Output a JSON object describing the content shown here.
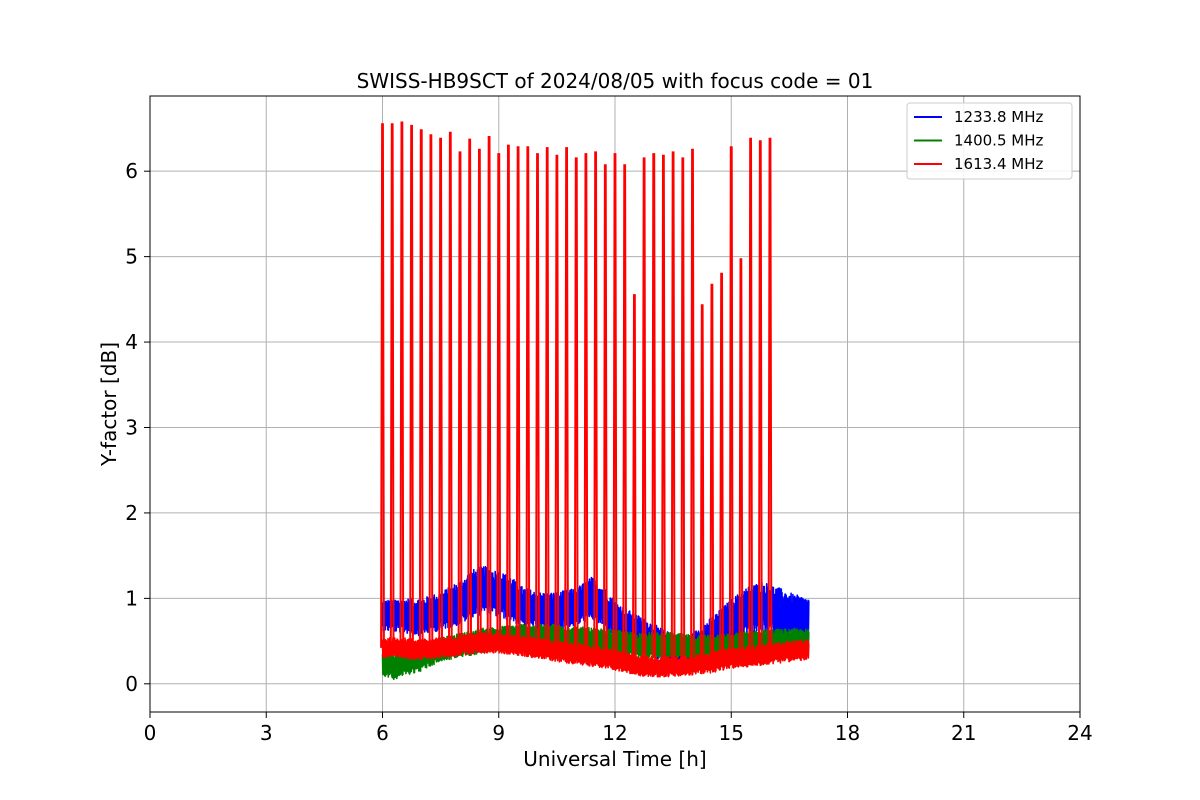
{
  "chart_data": {
    "type": "line",
    "title": "SWISS-HB9SCT of 2024/08/05 with focus code = 01",
    "xlabel": "Universal Time [h]",
    "ylabel": "Y-factor [dB]",
    "xlim": [
      0,
      24
    ],
    "ylim": [
      -0.33,
      6.88
    ],
    "xticks": [
      0,
      3,
      6,
      9,
      12,
      15,
      18,
      21,
      24
    ],
    "yticks": [
      0,
      1,
      2,
      3,
      4,
      5,
      6
    ],
    "grid": true,
    "legend_position": "top-right",
    "series": [
      {
        "name": "1233.8 MHz",
        "color": "#0000ff",
        "x": [
          6.0,
          6.5,
          7.0,
          7.5,
          8.0,
          8.3,
          8.6,
          9.0,
          9.3,
          9.6,
          10.0,
          10.5,
          11.0,
          11.4,
          11.7,
          12.0,
          12.4,
          12.8,
          13.2,
          13.6,
          13.9,
          14.2,
          14.6,
          15.0,
          15.4,
          15.8,
          16.2,
          16.6,
          17.0
        ],
        "values": [
          0.8,
          0.8,
          0.78,
          0.85,
          0.95,
          1.05,
          1.1,
          1.05,
          1.0,
          0.9,
          0.85,
          0.85,
          0.9,
          1.0,
          0.9,
          0.75,
          0.65,
          0.55,
          0.45,
          0.35,
          0.35,
          0.45,
          0.6,
          0.75,
          0.85,
          0.9,
          0.85,
          0.8,
          0.78
        ],
        "band": [
          0.18,
          0.2,
          0.22,
          0.22,
          0.26,
          0.28,
          0.28,
          0.27,
          0.26,
          0.24,
          0.22,
          0.22,
          0.22,
          0.25,
          0.24,
          0.22,
          0.2,
          0.2,
          0.2,
          0.2,
          0.2,
          0.22,
          0.22,
          0.24,
          0.28,
          0.3,
          0.28,
          0.25,
          0.22
        ]
      },
      {
        "name": "1400.5 MHz",
        "color": "#008000",
        "x": [
          6.0,
          6.3,
          6.6,
          7.0,
          7.5,
          8.0,
          8.5,
          9.0,
          9.5,
          10.0,
          10.5,
          11.0,
          11.5,
          12.0,
          12.5,
          13.0,
          13.5,
          14.0,
          14.5,
          15.0,
          15.5,
          16.0,
          16.5,
          17.0
        ],
        "values": [
          0.25,
          0.2,
          0.25,
          0.3,
          0.4,
          0.45,
          0.5,
          0.52,
          0.55,
          0.55,
          0.55,
          0.52,
          0.5,
          0.48,
          0.45,
          0.45,
          0.45,
          0.42,
          0.45,
          0.45,
          0.48,
          0.5,
          0.5,
          0.5
        ],
        "band": [
          0.15,
          0.15,
          0.15,
          0.15,
          0.14,
          0.14,
          0.15,
          0.15,
          0.15,
          0.15,
          0.15,
          0.15,
          0.15,
          0.15,
          0.15,
          0.15,
          0.15,
          0.15,
          0.14,
          0.14,
          0.14,
          0.14,
          0.14,
          0.14
        ]
      },
      {
        "name": "1613.4 MHz",
        "color": "#ff0000",
        "x": [
          6.0,
          6.5,
          7.0,
          7.5,
          8.0,
          8.5,
          9.0,
          9.5,
          10.0,
          10.5,
          11.0,
          11.5,
          12.0,
          12.5,
          13.0,
          13.5,
          14.0,
          14.5,
          15.0,
          15.5,
          16.0,
          16.5,
          17.0
        ],
        "values": [
          0.42,
          0.42,
          0.4,
          0.42,
          0.45,
          0.48,
          0.48,
          0.45,
          0.42,
          0.38,
          0.35,
          0.32,
          0.28,
          0.22,
          0.2,
          0.2,
          0.22,
          0.25,
          0.3,
          0.32,
          0.35,
          0.38,
          0.4
        ],
        "band": [
          0.12,
          0.12,
          0.12,
          0.12,
          0.12,
          0.12,
          0.12,
          0.12,
          0.12,
          0.12,
          0.12,
          0.12,
          0.12,
          0.12,
          0.12,
          0.12,
          0.12,
          0.12,
          0.12,
          0.12,
          0.12,
          0.12,
          0.12
        ],
        "spikes": [
          [
            6.0,
            6.55
          ],
          [
            6.25,
            6.55
          ],
          [
            6.5,
            6.57
          ],
          [
            6.75,
            6.53
          ],
          [
            7.0,
            6.48
          ],
          [
            7.25,
            6.42
          ],
          [
            7.5,
            6.38
          ],
          [
            7.75,
            6.45
          ],
          [
            8.0,
            6.22
          ],
          [
            8.25,
            6.37
          ],
          [
            8.5,
            6.25
          ],
          [
            8.75,
            6.4
          ],
          [
            9.0,
            6.2
          ],
          [
            9.25,
            6.3
          ],
          [
            9.5,
            6.28
          ],
          [
            9.75,
            6.28
          ],
          [
            10.0,
            6.2
          ],
          [
            10.25,
            6.27
          ],
          [
            10.5,
            6.18
          ],
          [
            10.75,
            6.27
          ],
          [
            11.0,
            6.15
          ],
          [
            11.25,
            6.2
          ],
          [
            11.5,
            6.22
          ],
          [
            11.75,
            6.07
          ],
          [
            12.0,
            6.2
          ],
          [
            12.25,
            6.07
          ],
          [
            12.5,
            4.55
          ],
          [
            12.75,
            6.15
          ],
          [
            13.0,
            6.2
          ],
          [
            13.25,
            6.18
          ],
          [
            13.5,
            6.22
          ],
          [
            13.75,
            6.15
          ],
          [
            14.0,
            6.25
          ],
          [
            14.25,
            4.43
          ],
          [
            14.5,
            4.67
          ],
          [
            14.75,
            4.8
          ],
          [
            15.0,
            6.28
          ],
          [
            15.25,
            4.97
          ],
          [
            15.5,
            6.38
          ],
          [
            15.75,
            6.35
          ],
          [
            16.0,
            6.38
          ]
        ]
      }
    ]
  }
}
